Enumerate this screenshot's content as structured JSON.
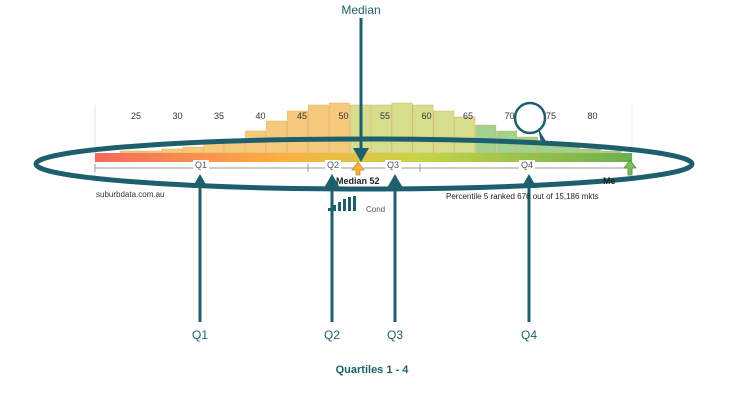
{
  "title": "Median",
  "caption": "Quartiles 1 - 4",
  "source": "suburbdata.com.au",
  "median_label": "Median",
  "median_value": "52",
  "ranking_text": "Percentile 5 ranked 676 out of 15,186 mkts",
  "right_label": "Me",
  "partial_text": "Cond",
  "scale_ticks": [
    "25",
    "30",
    "35",
    "40",
    "45",
    "50",
    "55",
    "60",
    "65",
    "70",
    "75",
    "80"
  ],
  "inline_quartiles": [
    "Q1",
    "Q2",
    "Q3",
    "Q4"
  ],
  "callouts": [
    "Q1",
    "Q2",
    "Q3",
    "Q4"
  ],
  "histogram": {
    "x": [
      25,
      27.5,
      30,
      32.5,
      35,
      37.5,
      40,
      42.5,
      45,
      47.5,
      50,
      52.5,
      55,
      57.5,
      60,
      62.5,
      65,
      67.5,
      70,
      72.5,
      75,
      77.5,
      80,
      82.5
    ],
    "values": [
      1,
      1,
      2,
      3,
      5,
      7,
      11,
      16,
      21,
      24,
      25,
      24,
      24,
      25,
      24,
      21,
      18,
      14,
      11,
      8,
      5,
      3,
      2,
      1
    ]
  },
  "colors": {
    "teal": "#1e5f6e",
    "bar_start": "#f26b5b",
    "bar_mid": "#fbb040",
    "bar_end": "#6ab04c"
  }
}
